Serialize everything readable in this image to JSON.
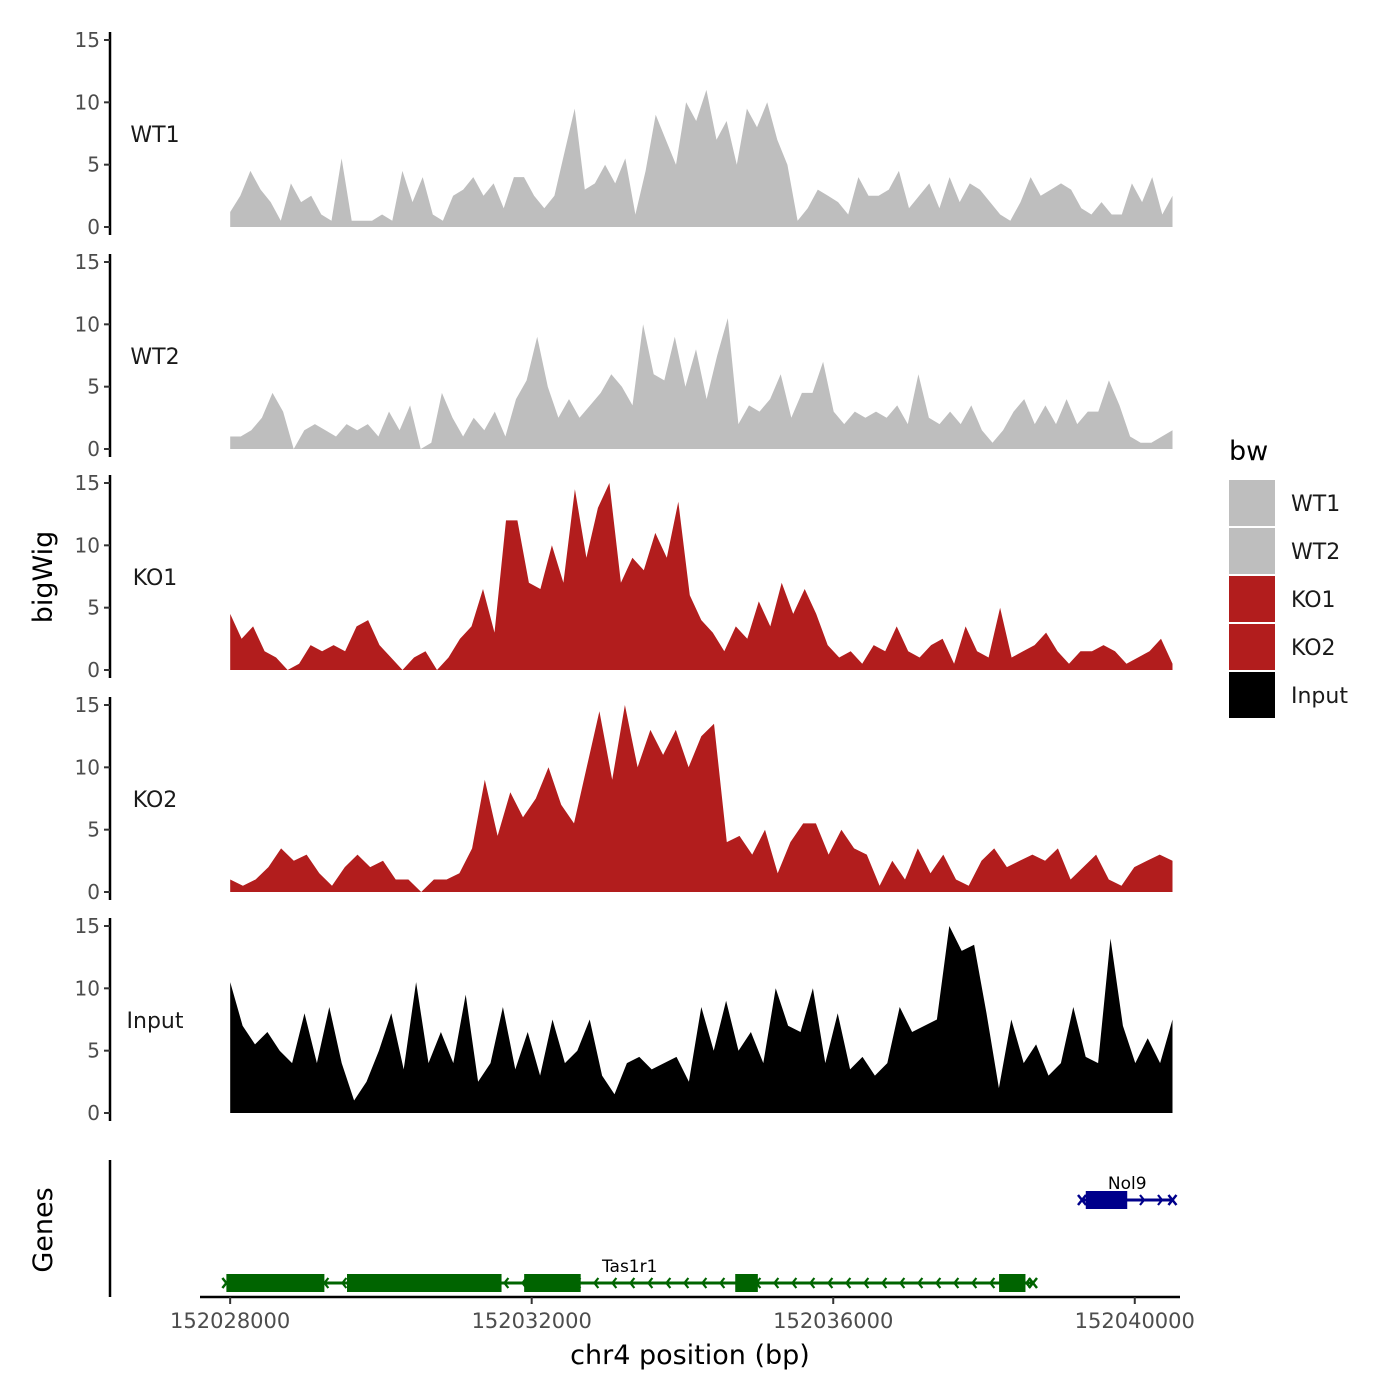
{
  "chart_data": {
    "type": "area",
    "xlabel": "chr4 position (bp)",
    "ylabel": "bigWig",
    "genes_label": "Genes",
    "xlim": [
      152027600,
      152040600
    ],
    "x_ticks": [
      152028000,
      152032000,
      152036000,
      152040000
    ],
    "x_tick_labels": [
      "152028000",
      "152032000",
      "152036000",
      "152040000"
    ],
    "ylim": [
      0,
      15
    ],
    "y_ticks": [
      0,
      5,
      10,
      15
    ],
    "y_tick_labels": [
      "0",
      "5",
      "10",
      "15"
    ],
    "x_start": 152028000,
    "x_end": 152040500,
    "legend": {
      "title": "bw",
      "entries": [
        {
          "label": "WT1",
          "color": "#bebebe"
        },
        {
          "label": "WT2",
          "color": "#bebebe"
        },
        {
          "label": "KO1",
          "color": "#b21d1d"
        },
        {
          "label": "KO2",
          "color": "#b21d1d"
        },
        {
          "label": "Input",
          "color": "#000000"
        }
      ]
    },
    "series": [
      {
        "name": "WT1",
        "color": "#bebebe",
        "values": [
          1.2,
          2.5,
          4.5,
          3.0,
          2.0,
          0.5,
          3.5,
          2.0,
          2.5,
          1.0,
          0.5,
          5.5,
          0.5,
          0.5,
          0.5,
          1.0,
          0.5,
          4.5,
          2.0,
          4.0,
          1.0,
          0.5,
          2.5,
          3.0,
          4.0,
          2.5,
          3.5,
          1.5,
          4.0,
          4.0,
          2.5,
          1.5,
          2.5,
          6.0,
          9.5,
          3.0,
          3.5,
          5.0,
          3.5,
          5.5,
          1.0,
          4.5,
          9.0,
          7.0,
          5.0,
          10.0,
          8.5,
          11.0,
          7.0,
          8.5,
          5.0,
          9.5,
          8.0,
          10.0,
          7.0,
          5.0,
          0.5,
          1.5,
          3.0,
          2.5,
          2.0,
          1.0,
          4.0,
          2.5,
          2.5,
          3.0,
          4.5,
          1.5,
          2.5,
          3.5,
          1.5,
          4.0,
          2.0,
          3.5,
          3.0,
          2.0,
          1.0,
          0.5,
          2.0,
          4.0,
          2.5,
          3.0,
          3.5,
          3.0,
          1.5,
          1.0,
          2.0,
          1.0,
          1.0,
          3.5,
          2.0,
          4.0,
          1.0,
          2.5
        ]
      },
      {
        "name": "WT2",
        "color": "#bebebe",
        "values": [
          1.0,
          1.0,
          1.5,
          2.5,
          4.5,
          3.0,
          0.0,
          1.5,
          2.0,
          1.5,
          1.0,
          2.0,
          1.5,
          2.0,
          1.0,
          3.0,
          1.5,
          3.5,
          0.0,
          0.5,
          4.5,
          2.5,
          1.0,
          2.5,
          1.5,
          3.0,
          1.0,
          4.0,
          5.5,
          9.0,
          5.0,
          2.5,
          4.0,
          2.5,
          3.5,
          4.5,
          6.0,
          5.0,
          3.5,
          10.0,
          6.0,
          5.5,
          9.0,
          5.0,
          8.0,
          4.0,
          7.5,
          10.5,
          2.0,
          3.5,
          3.0,
          4.0,
          6.0,
          2.5,
          4.5,
          4.5,
          7.0,
          3.0,
          2.0,
          3.0,
          2.5,
          3.0,
          2.5,
          3.5,
          2.0,
          6.0,
          2.5,
          2.0,
          3.0,
          2.0,
          3.5,
          1.5,
          0.5,
          1.5,
          3.0,
          4.0,
          2.0,
          3.5,
          2.0,
          4.0,
          2.0,
          3.0,
          3.0,
          5.5,
          3.5,
          1.0,
          0.5,
          0.5,
          1.0,
          1.5
        ]
      },
      {
        "name": "KO1",
        "color": "#b21d1d",
        "values": [
          4.5,
          2.5,
          3.5,
          1.5,
          1.0,
          0.0,
          0.5,
          2.0,
          1.5,
          2.0,
          1.5,
          3.5,
          4.0,
          2.0,
          1.0,
          0.0,
          1.0,
          1.5,
          0.0,
          1.0,
          2.5,
          3.5,
          6.5,
          3.0,
          12.0,
          12.0,
          7.0,
          6.5,
          10.0,
          7.0,
          14.5,
          9.0,
          13.0,
          15.0,
          7.0,
          9.0,
          8.0,
          11.0,
          9.0,
          13.5,
          6.0,
          4.0,
          3.0,
          1.5,
          3.5,
          2.5,
          5.5,
          3.5,
          7.0,
          4.5,
          6.5,
          4.5,
          2.0,
          1.0,
          1.5,
          0.5,
          2.0,
          1.5,
          3.5,
          1.5,
          1.0,
          2.0,
          2.5,
          0.5,
          3.5,
          1.5,
          1.0,
          5.0,
          1.0,
          1.5,
          2.0,
          3.0,
          1.5,
          0.5,
          1.5,
          1.5,
          2.0,
          1.5,
          0.5,
          1.0,
          1.5,
          2.5,
          0.5
        ]
      },
      {
        "name": "KO2",
        "color": "#b21d1d",
        "values": [
          1.0,
          0.5,
          1.0,
          2.0,
          3.5,
          2.5,
          3.0,
          1.5,
          0.5,
          2.0,
          3.0,
          2.0,
          2.5,
          1.0,
          1.0,
          0.0,
          1.0,
          1.0,
          1.5,
          3.5,
          9.0,
          4.5,
          8.0,
          6.0,
          7.5,
          10.0,
          7.0,
          5.5,
          10.0,
          14.5,
          9.0,
          15.0,
          10.0,
          13.0,
          11.0,
          13.0,
          10.0,
          12.5,
          13.5,
          4.0,
          4.5,
          3.0,
          5.0,
          1.5,
          4.0,
          5.5,
          5.5,
          3.0,
          5.0,
          3.5,
          3.0,
          0.5,
          2.5,
          1.0,
          3.5,
          1.5,
          3.0,
          1.0,
          0.5,
          2.5,
          3.5,
          2.0,
          2.5,
          3.0,
          2.5,
          3.5,
          1.0,
          2.0,
          3.0,
          1.0,
          0.5,
          2.0,
          2.5,
          3.0,
          2.5
        ]
      },
      {
        "name": "Input",
        "color": "#000000",
        "values": [
          10.5,
          7.0,
          5.5,
          6.5,
          5.0,
          4.0,
          8.0,
          4.0,
          8.5,
          4.0,
          1.0,
          2.5,
          5.0,
          8.0,
          3.5,
          10.5,
          4.0,
          6.5,
          4.0,
          9.5,
          2.5,
          4.0,
          8.5,
          3.5,
          6.5,
          3.0,
          7.5,
          4.0,
          5.0,
          7.5,
          3.0,
          1.5,
          4.0,
          4.5,
          3.5,
          4.0,
          4.5,
          2.5,
          8.5,
          5.0,
          9.0,
          5.0,
          6.5,
          4.0,
          10.0,
          7.0,
          6.5,
          10.0,
          4.0,
          8.0,
          3.5,
          4.5,
          3.0,
          4.0,
          8.5,
          6.5,
          7.0,
          7.5,
          15.0,
          13.0,
          13.5,
          8.0,
          2.0,
          7.5,
          4.0,
          5.5,
          3.0,
          4.0,
          8.5,
          4.5,
          4.0,
          14.0,
          7.0,
          4.0,
          6.0,
          4.0,
          7.5
        ]
      }
    ],
    "genes": [
      {
        "name": "Nol9",
        "color": "#00008b",
        "start": 152039300,
        "end": 152040500,
        "strand": "+",
        "exons": [
          [
            152039350,
            152039900
          ]
        ]
      },
      {
        "name": "Tas1r1",
        "color": "#006400",
        "start": 152027950,
        "end": 152038650,
        "strand": "-",
        "exons": [
          [
            152027950,
            152029250
          ],
          [
            152029550,
            152031600
          ],
          [
            152031900,
            152032650
          ],
          [
            152034700,
            152035000
          ],
          [
            152038200,
            152038550
          ]
        ]
      }
    ]
  }
}
